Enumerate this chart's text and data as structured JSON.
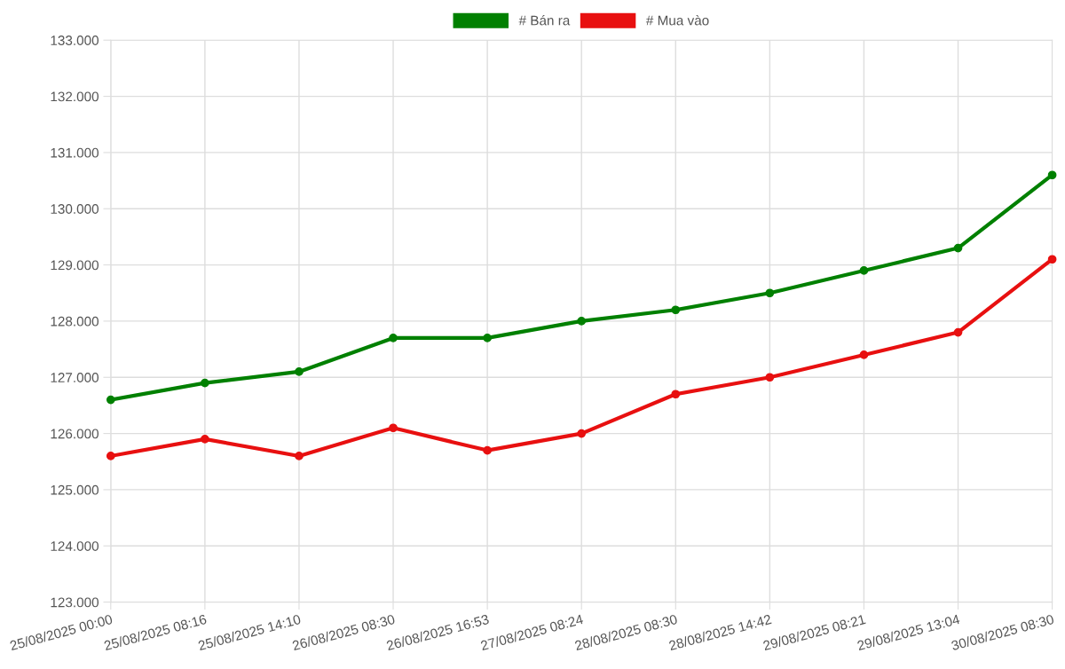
{
  "chart_data": {
    "type": "line",
    "categories": [
      "25/08/2025 00:00",
      "25/08/2025 08:16",
      "25/08/2025 14:10",
      "26/08/2025 08:30",
      "26/08/2025 16:53",
      "27/08/2025 08:24",
      "28/08/2025 08:30",
      "28/08/2025 14:42",
      "29/08/2025 08:21",
      "29/08/2025 13:04",
      "30/08/2025 08:30"
    ],
    "series": [
      {
        "name": "# Bán ra",
        "color": "#008000",
        "values": [
          126600,
          126900,
          127100,
          127700,
          127700,
          128000,
          128200,
          128500,
          128900,
          129300,
          130600
        ]
      },
      {
        "name": "# Mua vào",
        "color": "#e81010",
        "values": [
          125600,
          125900,
          125600,
          126100,
          125700,
          126000,
          126700,
          127000,
          127400,
          127800,
          129100
        ]
      }
    ],
    "ylim": [
      123000,
      133000
    ],
    "yticks": [
      {
        "value": 123000,
        "label": "123.000"
      },
      {
        "value": 124000,
        "label": "124.000"
      },
      {
        "value": 125000,
        "label": "125.000"
      },
      {
        "value": 126000,
        "label": "126.000"
      },
      {
        "value": 127000,
        "label": "127.000"
      },
      {
        "value": 128000,
        "label": "128.000"
      },
      {
        "value": 129000,
        "label": "129.000"
      },
      {
        "value": 130000,
        "label": "130.000"
      },
      {
        "value": 131000,
        "label": "131.000"
      },
      {
        "value": 132000,
        "label": "132.000"
      },
      {
        "value": 133000,
        "label": "133.000"
      }
    ],
    "grid": true,
    "legend": "top",
    "marker": "circle",
    "line_style": "solid"
  }
}
